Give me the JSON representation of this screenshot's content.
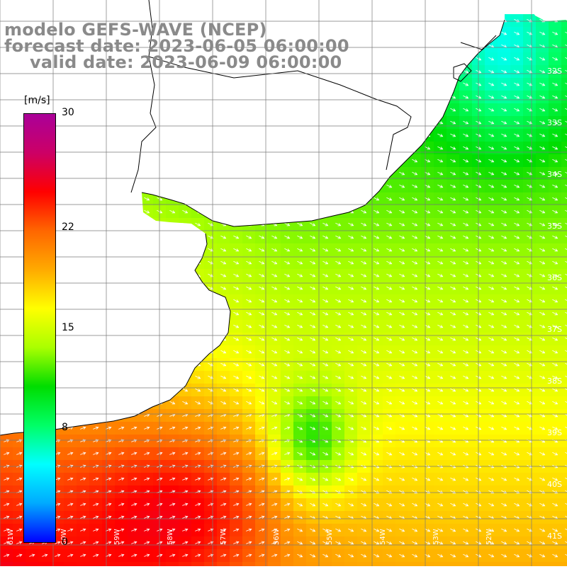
{
  "title": {
    "line1": "modelo GEFS-WAVE (NCEP)",
    "line2": "forecast date: 2023-06-05 06:00:00",
    "line3": "valid date: 2023-06-09 06:00:00"
  },
  "colorbar": {
    "unit": "[m/s]",
    "ticks": [
      "30",
      "22",
      "15",
      "8",
      "0"
    ],
    "min": 0,
    "max": 30,
    "stops": [
      "#0000ff",
      "#00aaff",
      "#00ffff",
      "#00ff66",
      "#00dd00",
      "#aaff00",
      "#ffff00",
      "#ffaa00",
      "#ff6600",
      "#ff0000",
      "#cc0066",
      "#aa0099"
    ]
  },
  "latitude_labels": [
    "32S",
    "33S",
    "34S",
    "35S",
    "36S",
    "37S",
    "38S",
    "39S",
    "40S",
    "41S"
  ],
  "longitude_labels": [
    "61W",
    "60W",
    "59W",
    "58W",
    "57W",
    "56W",
    "55W",
    "54W",
    "53W",
    "52W"
  ],
  "colors": {
    "land": "#ffffff",
    "coast": "#000000",
    "grid": "#7a7a7a",
    "arrows": "#ffffff",
    "title_text": "#8a8a8a"
  }
}
